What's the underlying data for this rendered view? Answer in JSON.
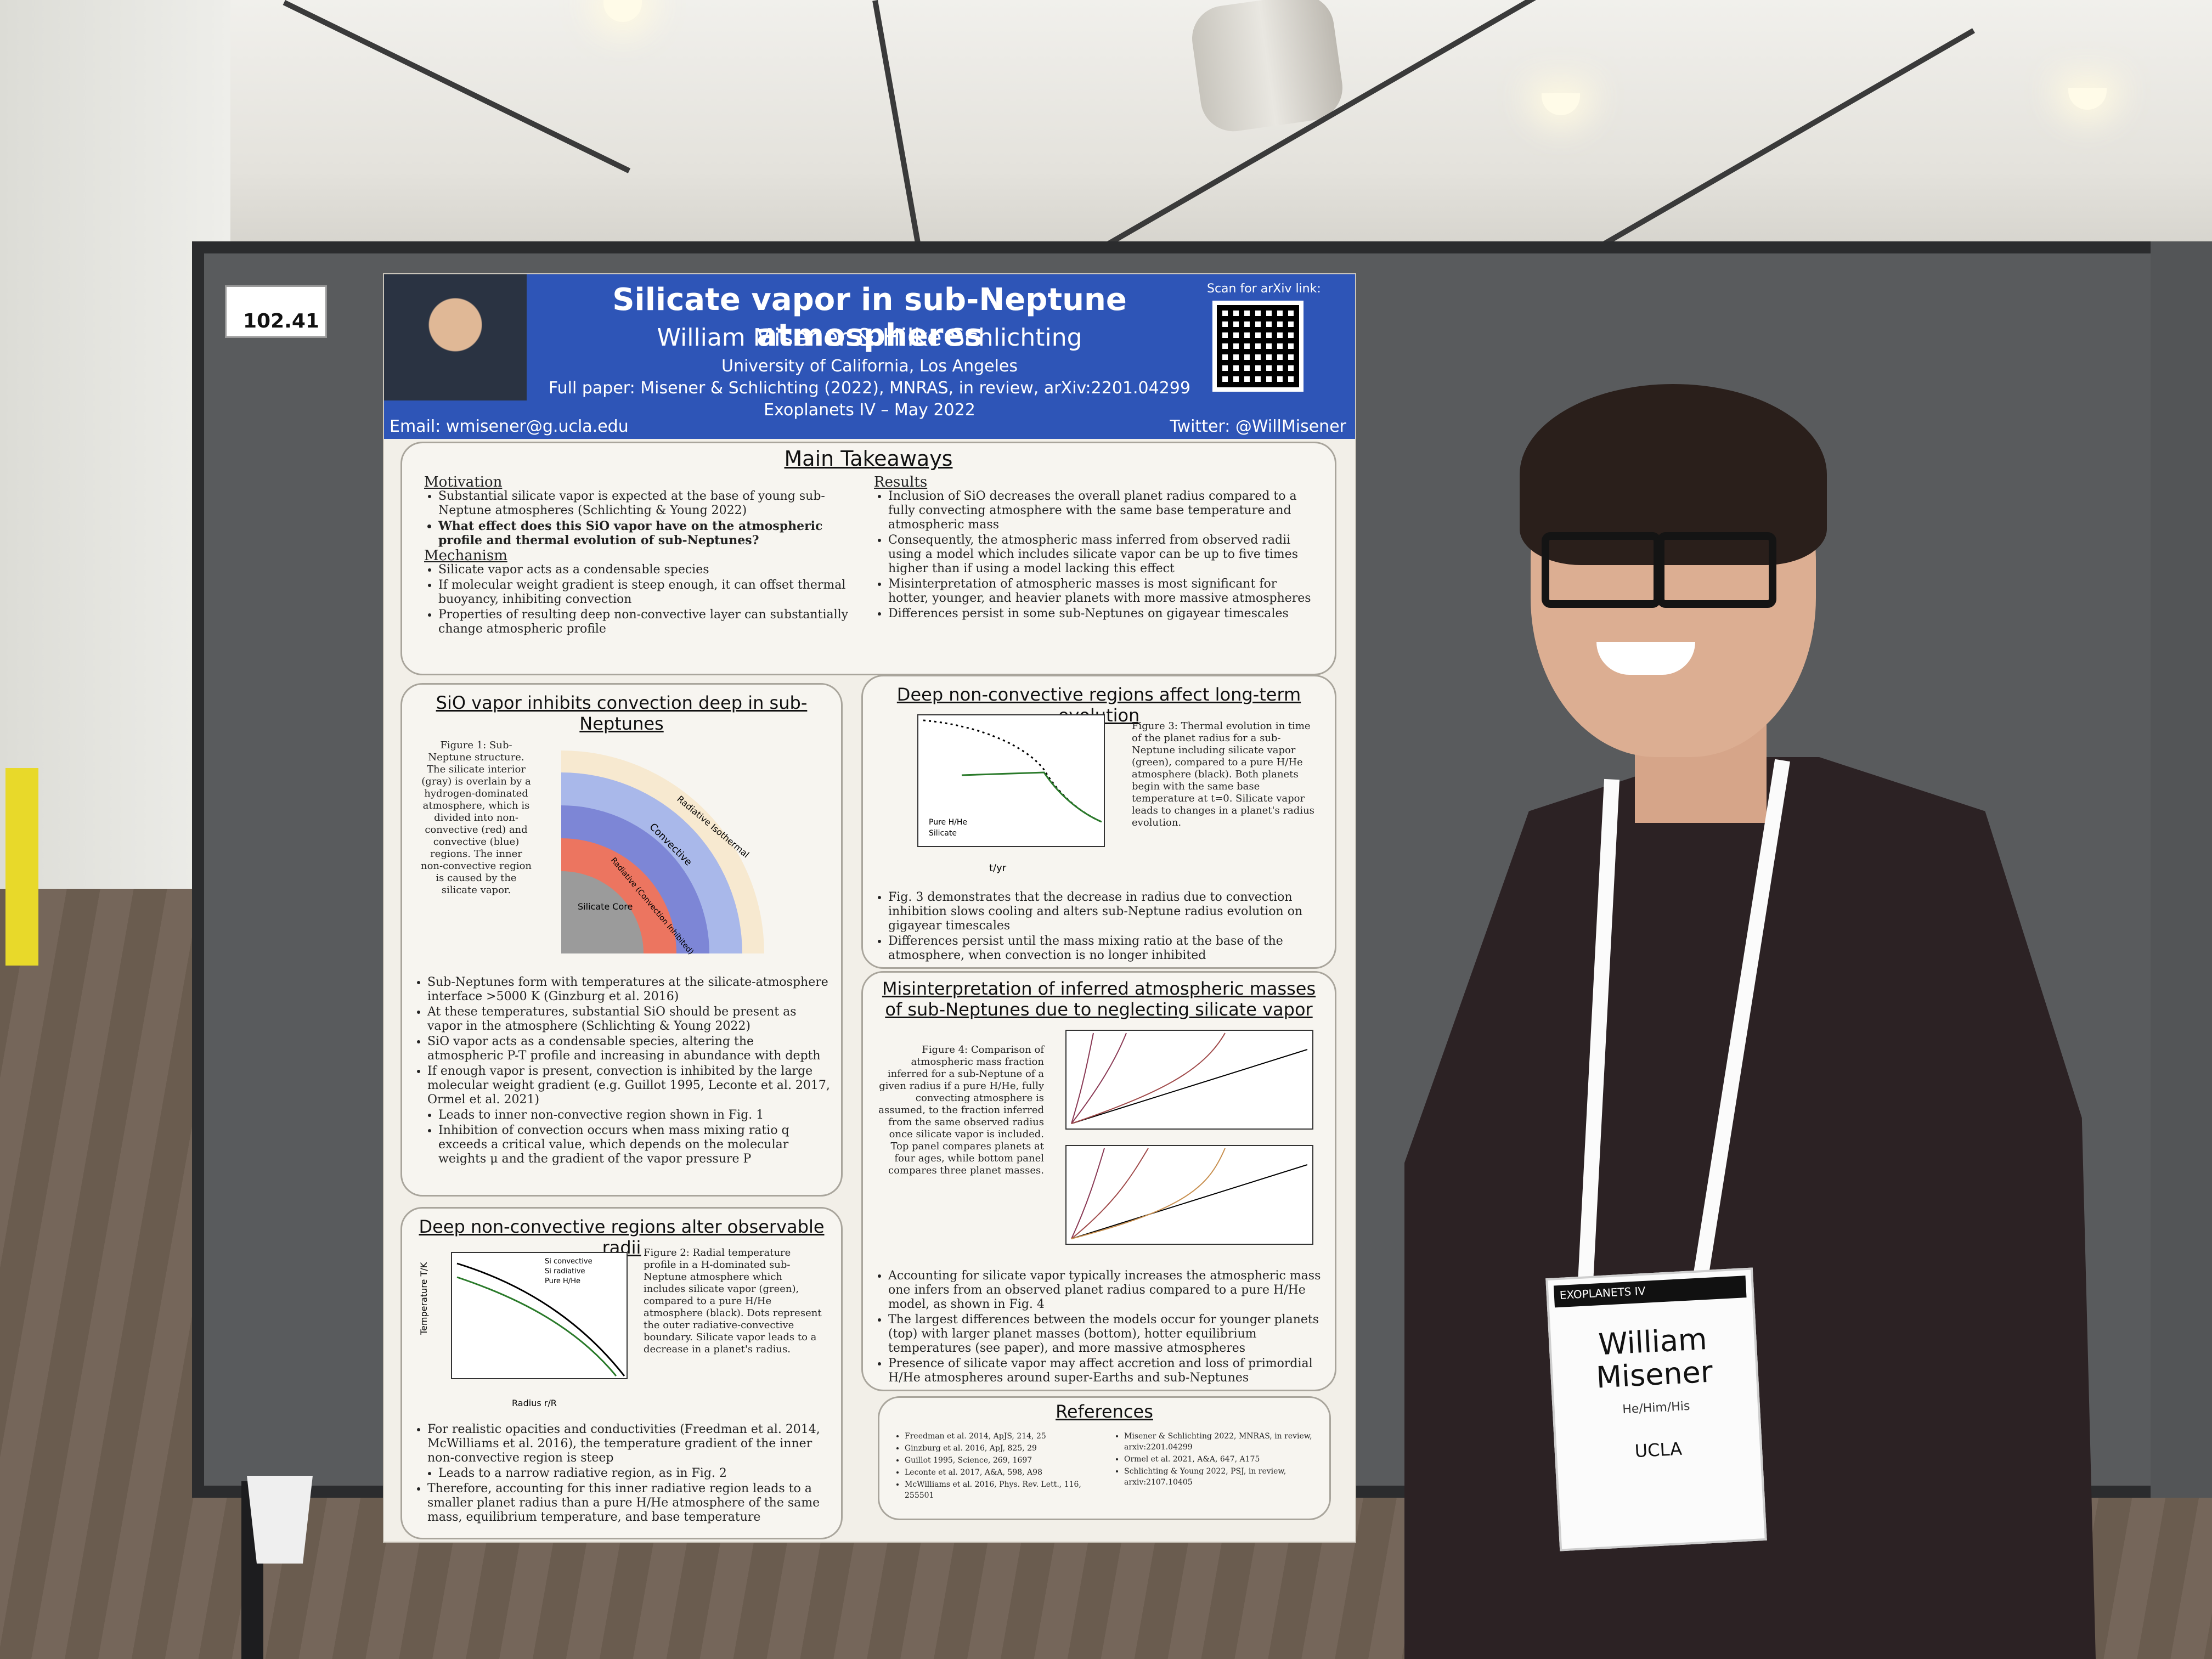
{
  "scene": {
    "booth_number": "102.41",
    "colors": {
      "poster_header": "#2e55b7",
      "board": "#595b5d",
      "shirt": "#2c2224"
    }
  },
  "poster": {
    "title": "Silicate vapor in sub-Neptune atmospheres",
    "authors": "William Misener & Hilke Schlichting",
    "affiliation": "University of California, Los Angeles",
    "full_paper": "Full paper: Misener & Schlichting (2022), MNRAS, in review, arXiv:2201.04299",
    "conference": "Exoplanets IV – May 2022",
    "email": "Email: wmisener@g.ucla.edu",
    "twitter": "Twitter: @WillMisener",
    "scan_label": "Scan for arXiv link:",
    "main_takeaways": {
      "title": "Main Takeaways",
      "motivation_heading": "Motivation",
      "motivation_items": [
        "Substantial silicate vapor is expected at the base of young sub-Neptune atmospheres (Schlichting & Young 2022)",
        "What effect does this SiO vapor have on the atmospheric profile and thermal evolution of sub-Neptunes?"
      ],
      "mechanism_heading": "Mechanism",
      "mechanism_items": [
        "Silicate vapor acts as a condensable species",
        "If molecular weight gradient is steep enough, it can offset thermal buoyancy, inhibiting convection",
        "Properties of resulting deep non-convective layer can substantially change atmospheric profile"
      ],
      "results_heading": "Results",
      "results_items": [
        "Inclusion of SiO decreases the overall planet radius compared to a fully convecting atmosphere with the same base temperature and atmospheric mass",
        "Consequently, the atmospheric mass inferred from observed radii using a model which includes silicate vapor can be up to five times higher than if using a model lacking this effect",
        "Misinterpretation of atmospheric masses is most significant for hotter, younger, and heavier planets with more massive atmospheres",
        "Differences persist in some sub-Neptunes on gigayear timescales"
      ]
    },
    "section1": {
      "title": "SiO vapor inhibits convection deep in sub-Neptunes",
      "figure_caption": "Figure 1: Sub-Neptune structure. The silicate interior (gray) is overlain by a hydrogen-dominated atmosphere, which is divided into non-convective (red) and convective (blue) regions. The inner non-convective region is caused by the silicate vapor.",
      "diagram_labels": [
        "Convective",
        "Radiative (Convection Inhibited)",
        "Silicate Core",
        "Radiative Isothermal"
      ],
      "bullets": [
        "Sub-Neptunes form with temperatures at the silicate-atmosphere interface >5000 K (Ginzburg et al. 2016)",
        "At these temperatures, substantial SiO should be present as vapor in the atmosphere (Schlichting & Young 2022)",
        "SiO vapor acts as a condensable species, altering the atmospheric P-T profile and increasing in abundance with depth",
        "If enough vapor is present, convection is inhibited by the large molecular weight gradient (e.g. Guillot 1995, Leconte et al. 2017, Ormel et al. 2021)",
        "Leads to inner non-convective region shown in Fig. 1",
        "Inhibition of convection occurs when mass mixing ratio q exceeds a critical value, which depends on the molecular weights μ and the gradient of the vapor pressure P"
      ]
    },
    "section2": {
      "title": "Deep non-convective regions alter observable radii",
      "figure_caption": "Figure 2: Radial temperature profile in a H-dominated sub-Neptune atmosphere which includes silicate vapor (green), compared to a pure H/He atmosphere (black). Dots represent the outer radiative-convective boundary. Silicate vapor leads to a decrease in a planet's radius.",
      "legend": [
        "Si convective",
        "Si radiative",
        "Pure H/He"
      ],
      "ylabel": "Temperature T/K",
      "xlabel": "Radius r/R",
      "bullets": [
        "For realistic opacities and conductivities (Freedman et al. 2014, McWilliams et al. 2016), the temperature gradient of the inner non-convective region is steep",
        "Leads to a narrow radiative region, as in Fig. 2",
        "Therefore, accounting for this inner radiative region leads to a smaller planet radius than a pure H/He atmosphere of the same mass, equilibrium temperature, and base temperature"
      ]
    },
    "section3": {
      "title": "Deep non-convective regions affect long-term evolution",
      "figure_caption": "Figure 3: Thermal evolution in time of the planet radius for a sub-Neptune including silicate vapor (green), compared to a pure H/He atmosphere (black). Both planets begin with the same base temperature at t=0. Silicate vapor leads to changes in a planet's radius evolution.",
      "legend": [
        "Pure H/He",
        "Silicate"
      ],
      "xlabel": "t/yr",
      "bullets": [
        "Fig. 3 demonstrates that the decrease in radius due to convection inhibition slows cooling and alters sub-Neptune radius evolution on gigayear timescales",
        "Differences persist until the mass mixing ratio at the base of the atmosphere, when convection is no longer inhibited"
      ]
    },
    "section4": {
      "title": "Misinterpretation of inferred atmospheric masses of sub-Neptunes due to neglecting silicate vapor",
      "figure_caption": "Figure 4: Comparison of atmospheric mass fraction inferred for a sub-Neptune of a given radius if a pure H/He, fully convecting atmosphere is assumed, to the fraction inferred from the same observed radius once silicate vapor is included. Top panel compares planets at four ages, while bottom panel compares three planet masses.",
      "bullets": [
        "Accounting for silicate vapor typically increases the atmospheric mass one infers from an observed planet radius compared to a pure H/He model, as shown in Fig. 4",
        "The largest differences between the models occur for younger planets (top) with larger planet masses (bottom), hotter equilibrium temperatures (see paper), and more massive atmospheres",
        "Presence of silicate vapor may affect accretion and loss of primordial H/He atmospheres around super-Earths and sub-Neptunes"
      ]
    },
    "references": {
      "title": "References",
      "left": [
        "Freedman et al. 2014, ApJS, 214, 25",
        "Ginzburg et al. 2016, ApJ, 825, 29",
        "Guillot 1995, Science, 269, 1697",
        "Leconte et al. 2017, A&A, 598, A98",
        "McWilliams et al. 2016, Phys. Rev. Lett., 116, 255501"
      ],
      "right": [
        "Misener & Schlichting 2022, MNRAS, in review, arxiv:2201.04299",
        "Ormel et al. 2021, A&A, 647, A175",
        "Schlichting & Young 2022, PSJ, in review, arxiv:2107.10405"
      ]
    }
  },
  "name_badge": {
    "event": "EXOPLANETS IV",
    "first_name": "William",
    "last_name": "Misener",
    "pronouns": "He/Him/His",
    "organization": "UCLA"
  }
}
